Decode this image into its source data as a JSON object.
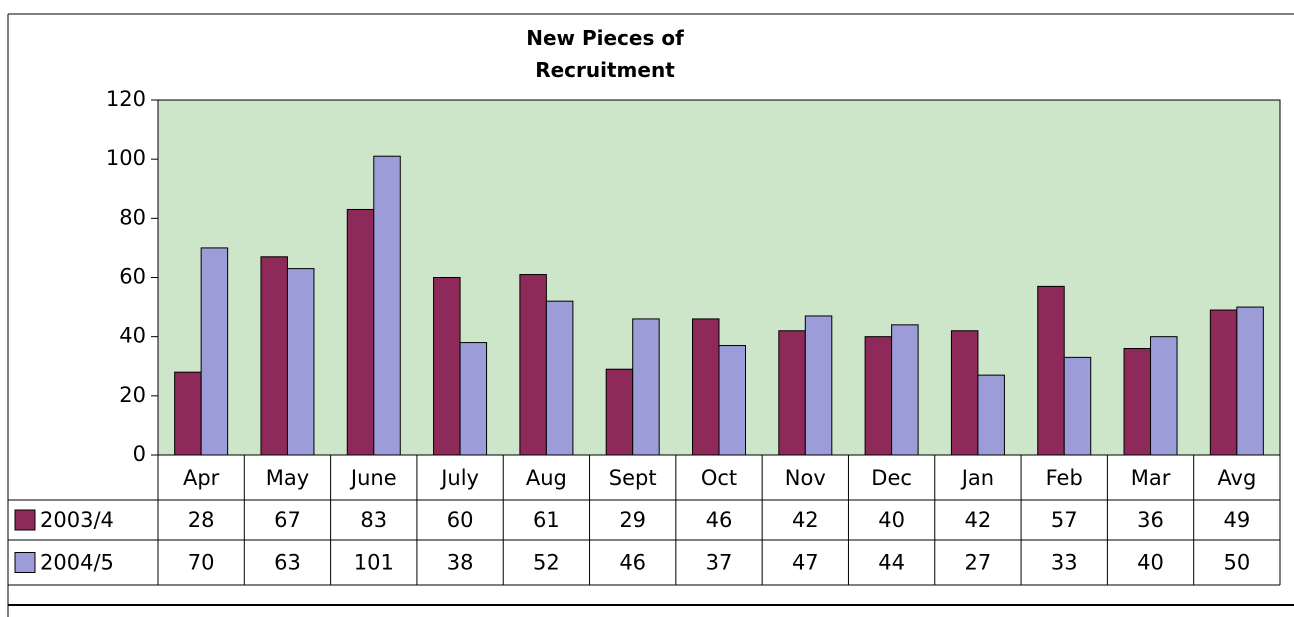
{
  "chart_data": {
    "type": "bar",
    "title": "New Pieces of Recruitment",
    "categories": [
      "Apr",
      "May",
      "June",
      "July",
      "Aug",
      "Sept",
      "Oct",
      "Nov",
      "Dec",
      "Jan",
      "Feb",
      "Mar",
      "Avg"
    ],
    "series": [
      {
        "name": "2003/4",
        "color": "#8e2a5a",
        "values": [
          28,
          67,
          83,
          60,
          61,
          29,
          46,
          42,
          40,
          42,
          57,
          36,
          49
        ]
      },
      {
        "name": "2004/5",
        "color": "#9c9cd8",
        "values": [
          70,
          63,
          101,
          38,
          52,
          46,
          37,
          47,
          44,
          27,
          33,
          40,
          50
        ]
      }
    ],
    "ylim": [
      0,
      120
    ],
    "yticks": [
      0,
      20,
      40,
      60,
      80,
      100,
      120
    ],
    "plot_background": "#cde5c8",
    "data_table": true
  }
}
